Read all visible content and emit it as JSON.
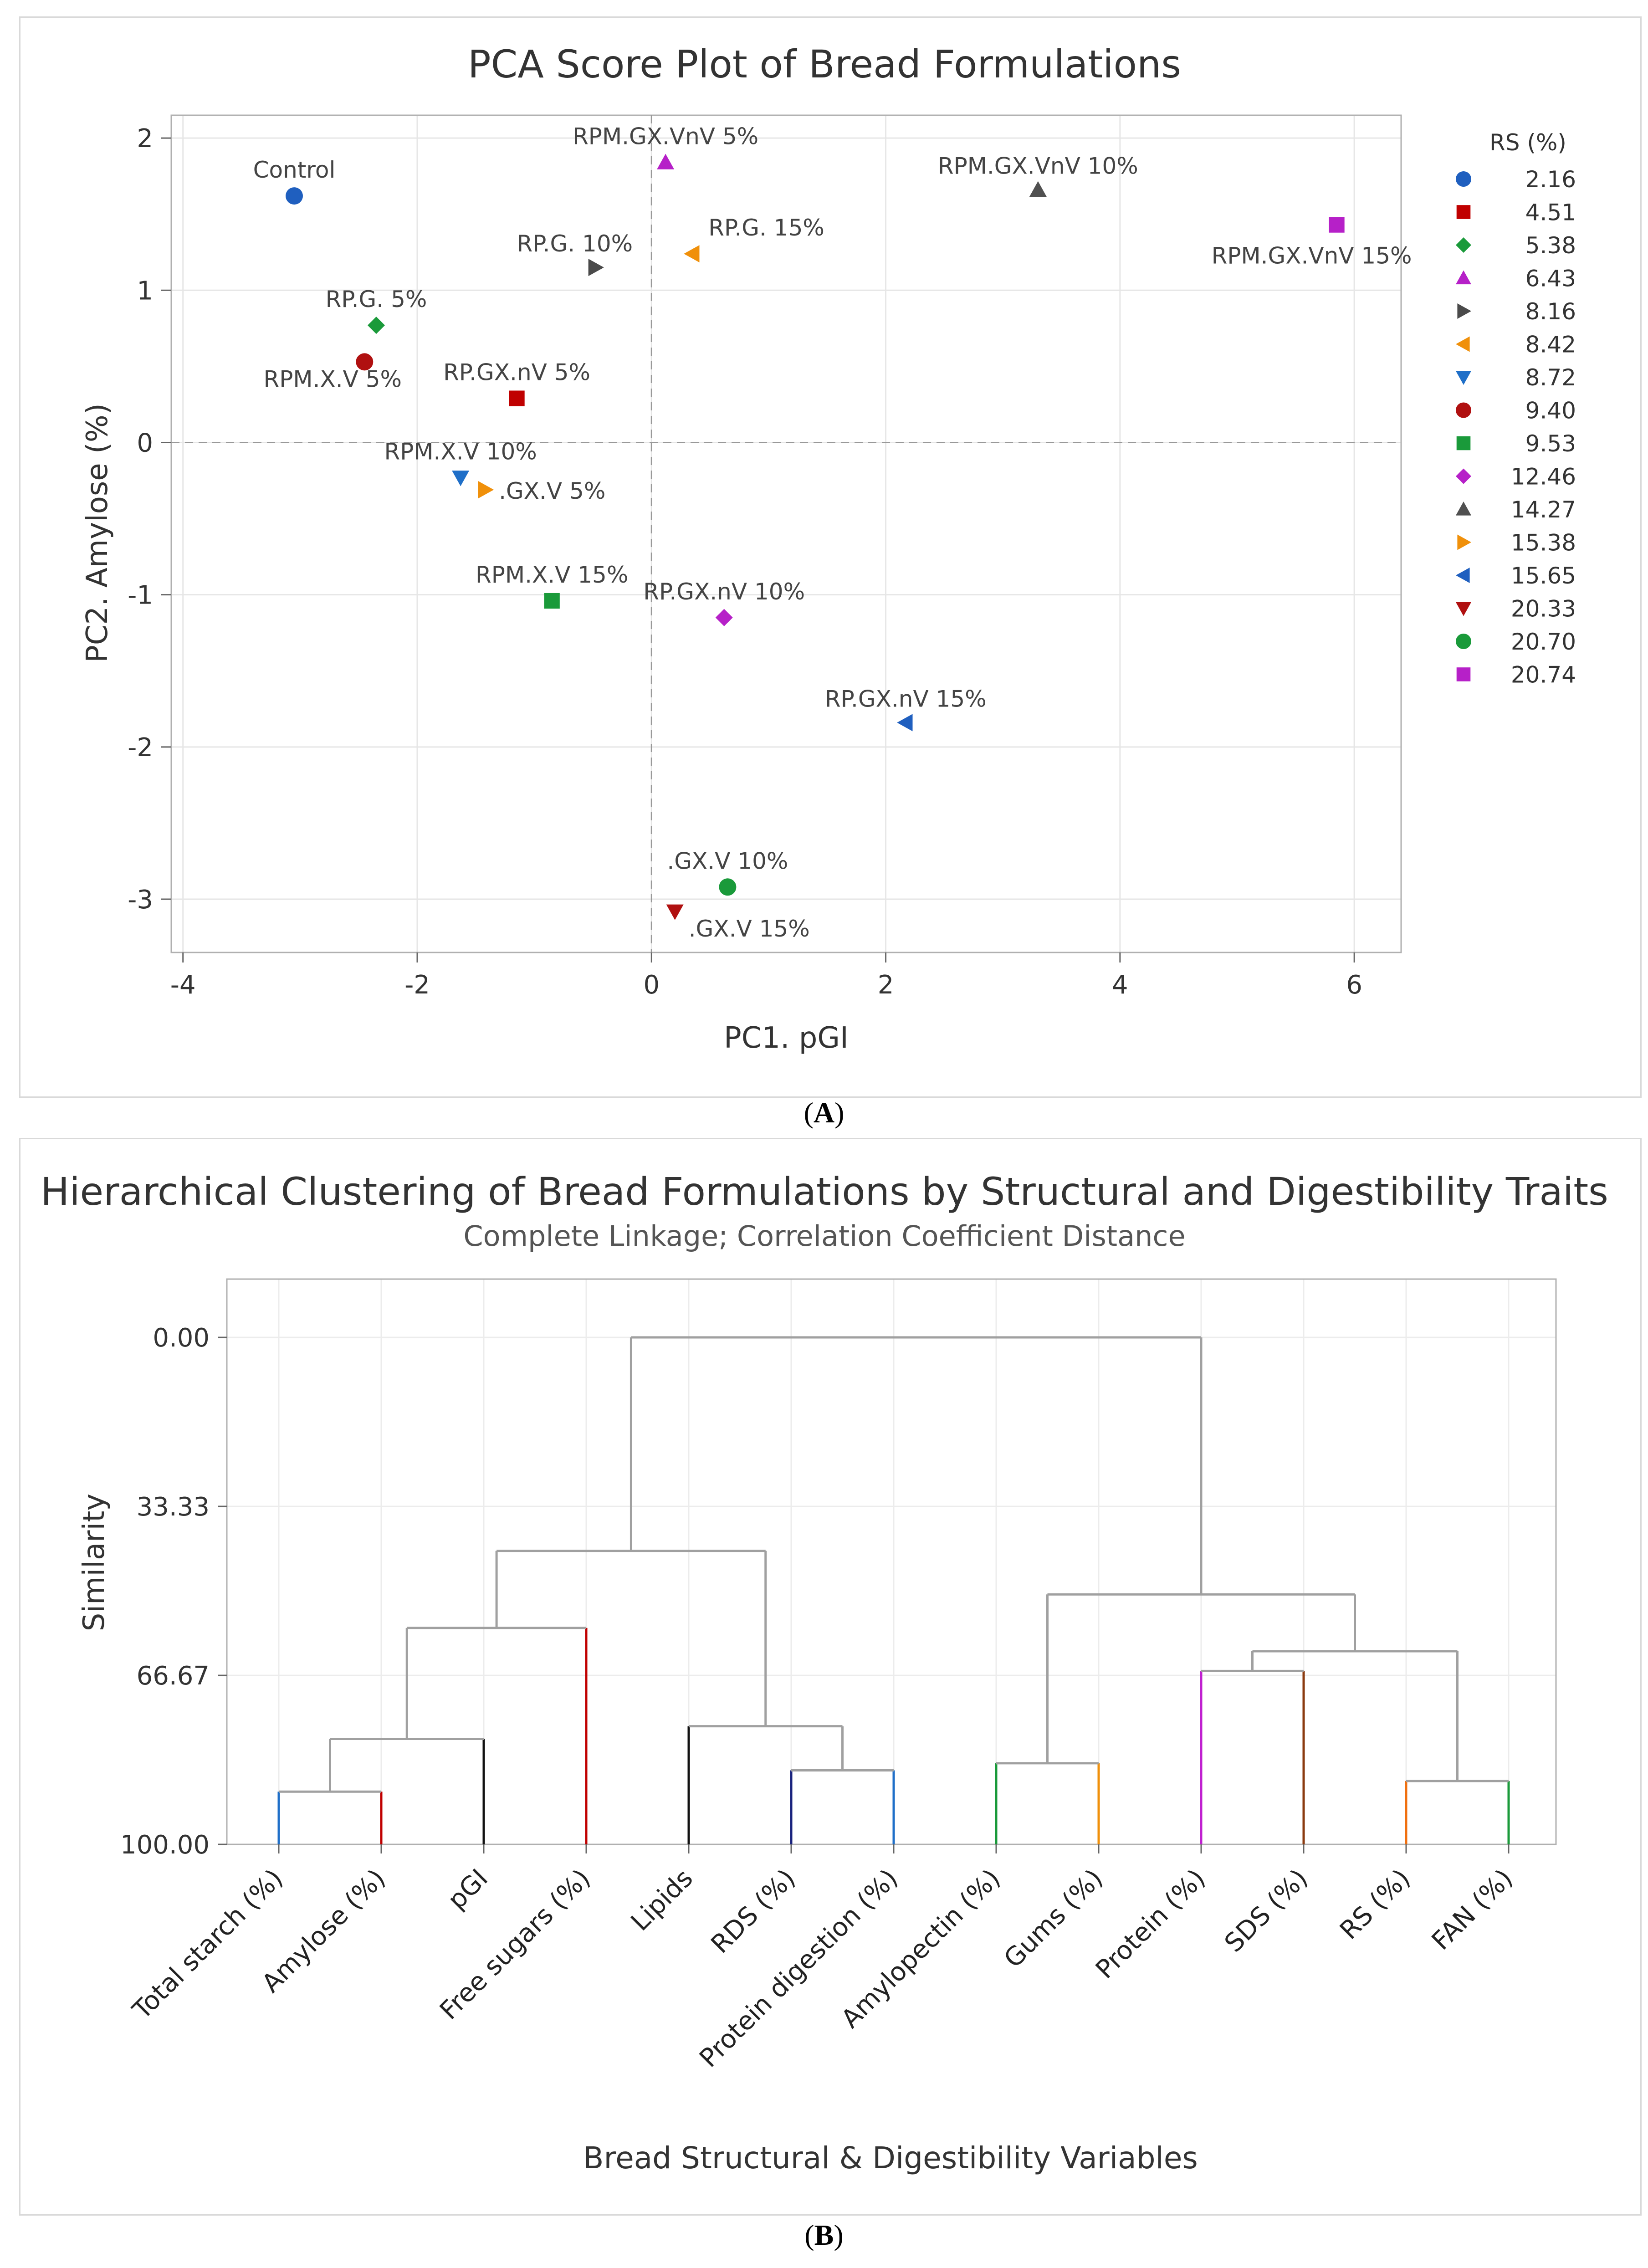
{
  "panels": {
    "a_caption": "A",
    "b_caption": "B"
  },
  "chart_data": [
    {
      "type": "scatter",
      "title": "PCA Score Plot of Bread Formulations",
      "xlabel": "PC1. pGI",
      "ylabel": "PC2. Amylose (%)",
      "xlim": [
        -4.1,
        6.4
      ],
      "ylim": [
        -3.35,
        2.15
      ],
      "xticks": [
        -4,
        -2,
        0,
        2,
        4,
        6
      ],
      "yticks": [
        -3,
        -2,
        -1,
        0,
        1,
        2
      ],
      "xtick_labels": [
        "-4",
        "-2",
        "0",
        "2",
        "4",
        "6"
      ],
      "ytick_labels": [
        "-3",
        "-2",
        "-1",
        "0",
        "1",
        "2"
      ],
      "reference_lines": {
        "x": 0,
        "y": 0
      },
      "legend": {
        "title": "RS (%)",
        "placement": "right",
        "entries": [
          {
            "label": "2.16",
            "marker": "circle",
            "color": "#1f5fbf"
          },
          {
            "label": "4.51",
            "marker": "square",
            "color": "#c00000"
          },
          {
            "label": "5.38",
            "marker": "diamond",
            "color": "#1a9a3a"
          },
          {
            "label": "6.43",
            "marker": "triangle-up",
            "color": "#b620c8"
          },
          {
            "label": "8.16",
            "marker": "triangle-right",
            "color": "#4a4a4a"
          },
          {
            "label": "8.42",
            "marker": "triangle-left",
            "color": "#f0900a"
          },
          {
            "label": "8.72",
            "marker": "triangle-down",
            "color": "#1f6fc8"
          },
          {
            "label": "9.40",
            "marker": "circle",
            "color": "#b01010"
          },
          {
            "label": "9.53",
            "marker": "square",
            "color": "#1a9a3a"
          },
          {
            "label": "12.46",
            "marker": "diamond",
            "color": "#b620c8"
          },
          {
            "label": "14.27",
            "marker": "triangle-up",
            "color": "#505050"
          },
          {
            "label": "15.38",
            "marker": "triangle-right",
            "color": "#f0900a"
          },
          {
            "label": "15.65",
            "marker": "triangle-left",
            "color": "#1f5fbf"
          },
          {
            "label": "20.33",
            "marker": "triangle-down",
            "color": "#b01010"
          },
          {
            "label": "20.70",
            "marker": "circle",
            "color": "#1a9a3a"
          },
          {
            "label": "20.74",
            "marker": "square",
            "color": "#b620c8"
          }
        ]
      },
      "points": [
        {
          "label": "Control",
          "x": -3.05,
          "y": 1.62,
          "rs": "2.16"
        },
        {
          "label": "RP.GX.nV 5%",
          "x": -1.15,
          "y": 0.29,
          "rs": "4.51"
        },
        {
          "label": "RP.G. 5%",
          "x": -2.35,
          "y": 0.77,
          "rs": "5.38"
        },
        {
          "label": "RPM.GX.VnV 5%",
          "x": 0.12,
          "y": 1.84,
          "rs": "6.43"
        },
        {
          "label": "RP.G. 10%",
          "x": -0.48,
          "y": 1.15,
          "rs": "8.16"
        },
        {
          "label": "RP.G. 15%",
          "x": 0.35,
          "y": 1.24,
          "rs": "8.42"
        },
        {
          "label": "RPM.X.V 10%",
          "x": -1.63,
          "y": -0.23,
          "rs": "8.72"
        },
        {
          "label": "RPM.X.V 5%",
          "x": -2.45,
          "y": 0.53,
          "rs": "9.40"
        },
        {
          "label": "RPM.X.V 15%",
          "x": -0.85,
          "y": -1.04,
          "rs": "9.53"
        },
        {
          "label": "RP.GX.nV 10%",
          "x": 0.62,
          "y": -1.15,
          "rs": "12.46"
        },
        {
          "label": "RPM.GX.VnV 10%",
          "x": 3.3,
          "y": 1.66,
          "rs": "14.27"
        },
        {
          "label": ".GX.V 5%",
          "x": -1.42,
          "y": -0.31,
          "rs": "15.38"
        },
        {
          "label": "RP.GX.nV 15%",
          "x": 2.17,
          "y": -1.84,
          "rs": "15.65"
        },
        {
          "label": ".GX.V 15%",
          "x": 0.2,
          "y": -3.08,
          "rs": "20.33"
        },
        {
          "label": ".GX.V 10%",
          "x": 0.65,
          "y": -2.92,
          "rs": "20.70"
        },
        {
          "label": "RPM.GX.VnV 15%",
          "x": 5.85,
          "y": 1.43,
          "rs": "20.74"
        }
      ]
    },
    {
      "type": "dendrogram",
      "title": "Hierarchical Clustering of Bread Formulations by Structural and Digestibility Traits",
      "subtitle": "Complete Linkage; Correlation Coefficient Distance",
      "xlabel": "Bread Structural & Digestibility Variables",
      "ylabel": "Similarity",
      "ylim": [
        100,
        -11.5
      ],
      "yticks": [
        0,
        33.33,
        66.67,
        100
      ],
      "ytick_labels": [
        "0.00",
        "33.33",
        "66.67",
        "100.00"
      ],
      "leaves": [
        {
          "label": "Total starch (%)",
          "color": "#1f6fc8"
        },
        {
          "label": "Amylose (%)",
          "color": "#c00000"
        },
        {
          "label": "pGI",
          "color": "#111111"
        },
        {
          "label": "Free sugars (%)",
          "color": "#c00000"
        },
        {
          "label": "Lipids",
          "color": "#111111"
        },
        {
          "label": "RDS (%)",
          "color": "#1a237e"
        },
        {
          "label": "Protein digestion (%)",
          "color": "#1f6fc8"
        },
        {
          "label": "Amylopectin (%)",
          "color": "#1a9a3a"
        },
        {
          "label": "Gums (%)",
          "color": "#f0900a"
        },
        {
          "label": "Protein (%)",
          "color": "#c020d0"
        },
        {
          "label": "SDS (%)",
          "color": "#8b3a0f"
        },
        {
          "label": "RS (%)",
          "color": "#f07010"
        },
        {
          "label": "FAN (%)",
          "color": "#1a9a3a"
        }
      ],
      "merges": [
        {
          "left": "leaf:0",
          "right": "leaf:1",
          "similarity": 89.6
        },
        {
          "left": "node:0",
          "right": "leaf:2",
          "similarity": 79.2
        },
        {
          "left": "leaf:5",
          "right": "leaf:6",
          "similarity": 85.4
        },
        {
          "left": "leaf:4",
          "right": "node:2",
          "similarity": 76.7
        },
        {
          "left": "leaf:7",
          "right": "leaf:8",
          "similarity": 84.0
        },
        {
          "left": "leaf:11",
          "right": "leaf:12",
          "similarity": 87.5
        },
        {
          "left": "leaf:9",
          "right": "leaf:10",
          "similarity": 65.8
        },
        {
          "left": "node:1",
          "right": "leaf:3",
          "similarity": 57.3
        },
        {
          "left": "node:6",
          "right": "node:5",
          "similarity": 61.9
        },
        {
          "left": "node:4",
          "right": "node:8",
          "similarity": 50.7
        },
        {
          "left": "node:7",
          "right": "node:3",
          "similarity": 42.1
        },
        {
          "left": "node:10",
          "right": "node:9",
          "similarity": 0.0
        }
      ]
    }
  ]
}
